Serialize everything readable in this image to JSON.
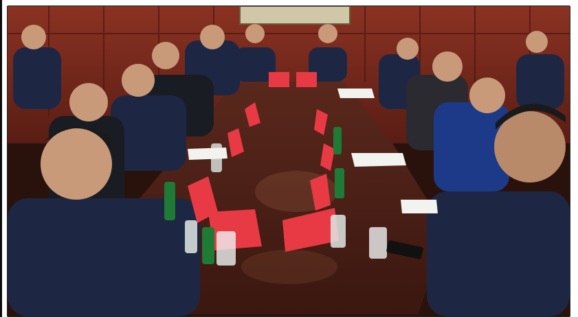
{
  "photo": {
    "caption": "",
    "colors": {
      "wall": "#7a2a1c",
      "wall_dark": "#4e1a12",
      "table_top": "#4a1f16",
      "table_edge": "#2c110c",
      "suit_navy": "#1d2744",
      "suit_dark": "#1a1c24",
      "place_card": "#e83a44",
      "bottle_green": "#1f7a36",
      "skin": "#c99a7a"
    }
  }
}
